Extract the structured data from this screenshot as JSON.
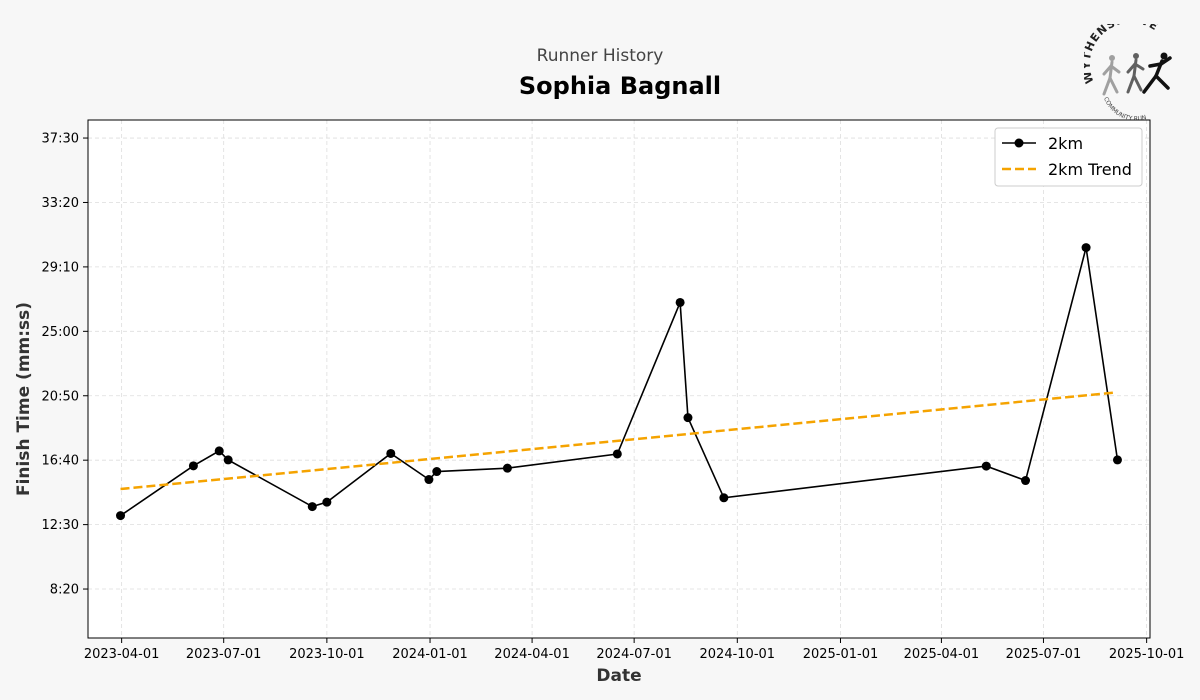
{
  "header": {
    "subtitle": "Runner History",
    "title": "Sophia Bagnall"
  },
  "logo": {
    "arc_text": "WYTHENSHAWE",
    "bottom_text": "COMMUNITY RUN"
  },
  "chart_data": {
    "type": "line",
    "xlabel": "Date",
    "ylabel": "Finish Time (mm:ss)",
    "x_ticks": [
      "2023-04-01",
      "2023-07-01",
      "2023-10-01",
      "2024-01-01",
      "2024-04-01",
      "2024-07-01",
      "2024-10-01",
      "2025-01-01",
      "2025-04-01",
      "2025-07-01",
      "2025-10-01"
    ],
    "y_ticks": [
      "8:20",
      "12:30",
      "16:40",
      "20:50",
      "25:00",
      "29:10",
      "33:20",
      "37:30"
    ],
    "y_tick_seconds": [
      500,
      750,
      1000,
      1250,
      1500,
      1750,
      2000,
      2250
    ],
    "xlim": [
      "2023-03-02",
      "2025-10-04"
    ],
    "ylim_seconds": [
      310,
      2320
    ],
    "grid": true,
    "legend_position": "top-right",
    "series": [
      {
        "name": "2km",
        "color": "#000000",
        "marker": "circle",
        "points": [
          {
            "x": "2023-03-31",
            "y": 785
          },
          {
            "x": "2023-06-04",
            "y": 978
          },
          {
            "x": "2023-06-27",
            "y": 1036
          },
          {
            "x": "2023-07-05",
            "y": 1001
          },
          {
            "x": "2023-09-18",
            "y": 820
          },
          {
            "x": "2023-10-01",
            "y": 837
          },
          {
            "x": "2023-11-27",
            "y": 1026
          },
          {
            "x": "2023-12-31",
            "y": 925
          },
          {
            "x": "2024-01-07",
            "y": 956
          },
          {
            "x": "2024-03-10",
            "y": 969
          },
          {
            "x": "2024-06-16",
            "y": 1024
          },
          {
            "x": "2024-08-11",
            "y": 1612
          },
          {
            "x": "2024-08-18",
            "y": 1165
          },
          {
            "x": "2024-09-19",
            "y": 854
          },
          {
            "x": "2025-05-11",
            "y": 977
          },
          {
            "x": "2025-06-15",
            "y": 921
          },
          {
            "x": "2025-08-08",
            "y": 1825
          },
          {
            "x": "2025-09-05",
            "y": 1001
          }
        ]
      },
      {
        "name": "2km Trend",
        "color": "#f5a300",
        "style": "dashed",
        "points": [
          {
            "x": "2023-03-31",
            "y": 888
          },
          {
            "x": "2025-09-02",
            "y": 1262
          }
        ]
      }
    ]
  }
}
